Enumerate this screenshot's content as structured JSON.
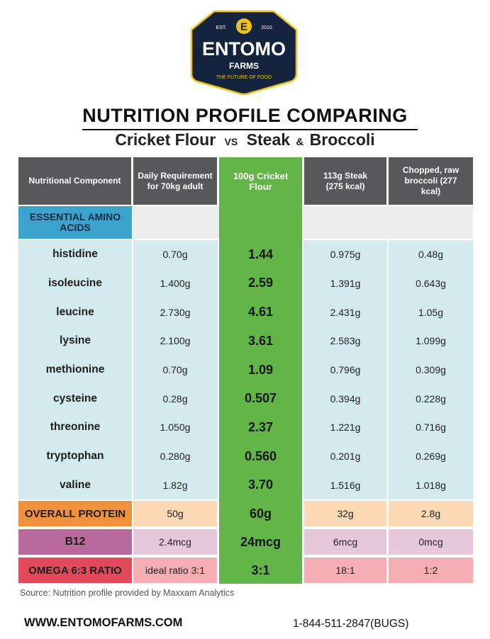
{
  "logo": {
    "est_label": "EST.",
    "year": "2010",
    "monogram": "E",
    "brand": "ENTOMO",
    "sub": "FARMS",
    "tagline": "THE FUTURE OF FOOD",
    "badge_color": "#14243e",
    "accent_color": "#f1c21b"
  },
  "title": "NUTRITION PROFILE COMPARING",
  "subtitle": {
    "left": "Cricket Flour",
    "vs": "VS",
    "mid": "Steak",
    "amp": "&",
    "right": "Broccoli"
  },
  "table": {
    "headers": [
      "Nutritional Component",
      "Daily Requirement for 70kg adult",
      "100g Cricket Flour",
      "113g Steak (275 kcal)",
      "Chopped, raw broccoli (277 kcal)"
    ],
    "section_label": "ESSENTIAL AMINO ACIDS",
    "amino_rows": [
      {
        "name": "histidine",
        "daily": "0.70g",
        "cricket": "1.44",
        "steak": "0.975g",
        "broccoli": "0.48g"
      },
      {
        "name": "isoleucine",
        "daily": "1.400g",
        "cricket": "2.59",
        "steak": "1.391g",
        "broccoli": "0.643g"
      },
      {
        "name": "leucine",
        "daily": "2.730g",
        "cricket": "4.61",
        "steak": "2.431g",
        "broccoli": "1.05g"
      },
      {
        "name": "lysine",
        "daily": "2.100g",
        "cricket": "3.61",
        "steak": "2.583g",
        "broccoli": "1.099g"
      },
      {
        "name": "methionine",
        "daily": "0.70g",
        "cricket": "1.09",
        "steak": "0.796g",
        "broccoli": "0.309g"
      },
      {
        "name": "cysteine",
        "daily": "0.28g",
        "cricket": "0.507",
        "steak": "0.394g",
        "broccoli": "0.228g"
      },
      {
        "name": "threonine",
        "daily": "1.050g",
        "cricket": "2.37",
        "steak": "1.221g",
        "broccoli": "0.716g"
      },
      {
        "name": "tryptophan",
        "daily": "0.280g",
        "cricket": "0.560",
        "steak": "0.201g",
        "broccoli": "0.269g"
      },
      {
        "name": "valine",
        "daily": "1.82g",
        "cricket": "3.70",
        "steak": "1.516g",
        "broccoli": "1.018g"
      }
    ],
    "protein": {
      "name": "OVERALL PROTEIN",
      "daily": "50g",
      "cricket": "60g",
      "steak": "32g",
      "broccoli": "2.8g"
    },
    "b12": {
      "name": "B12",
      "daily": "2.4mcg",
      "cricket": "24mcg",
      "steak": "6mcg",
      "broccoli": "0mcg"
    },
    "omega": {
      "name": "OMEGA 6:3 RATIO",
      "daily": "ideal ratio 3:1",
      "cricket": "3:1",
      "steak": "18:1",
      "broccoli": "1:2"
    }
  },
  "source": "Source: Nutrition profile provided by Maxxam Analytics",
  "website": "WWW.ENTOMOFARMS.COM",
  "phone": "1-844-511-2847(BUGS)",
  "colors": {
    "header_gray": "#58585a",
    "cricket_green": "#62b547",
    "amino_band": "#d4ebee",
    "section_blue": "#3ba3cc",
    "protein_label": "#f0913d",
    "protein_cell": "#fbd9b4",
    "b12_label": "#b86a9c",
    "b12_cell": "#e6c8da",
    "omega_label": "#e24a5b",
    "omega_cell": "#f4aeb4"
  }
}
